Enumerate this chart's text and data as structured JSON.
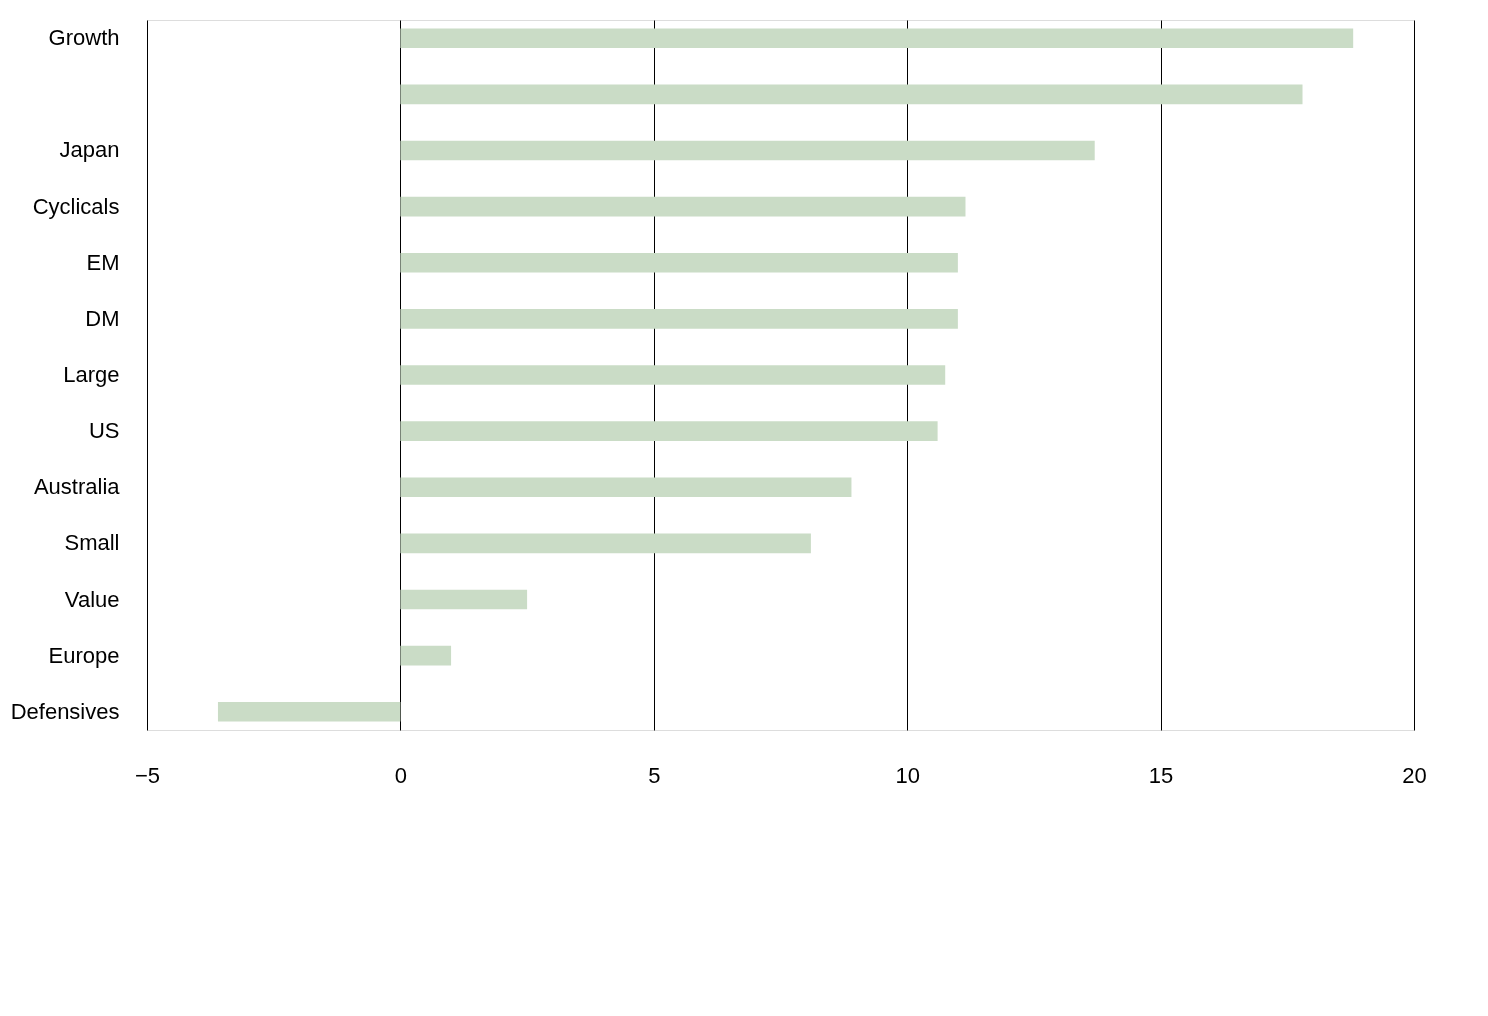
{
  "chart_data": {
    "type": "bar",
    "orientation": "horizontal",
    "categories": [
      "Growth",
      null,
      "Japan",
      "Cyclicals",
      "EM",
      "DM",
      "Large",
      "US",
      "Australia",
      "Small",
      "Value",
      "Europe",
      "Defensives"
    ],
    "values": [
      18.8,
      17.8,
      13.7,
      11.15,
      11.0,
      11.0,
      10.75,
      10.6,
      8.9,
      8.1,
      2.5,
      1.0,
      -3.6
    ],
    "color": "#cadcc6",
    "xlim": [
      -5,
      20
    ],
    "xticks": [
      -5,
      0,
      5,
      10,
      15,
      20
    ],
    "grid": "x"
  }
}
